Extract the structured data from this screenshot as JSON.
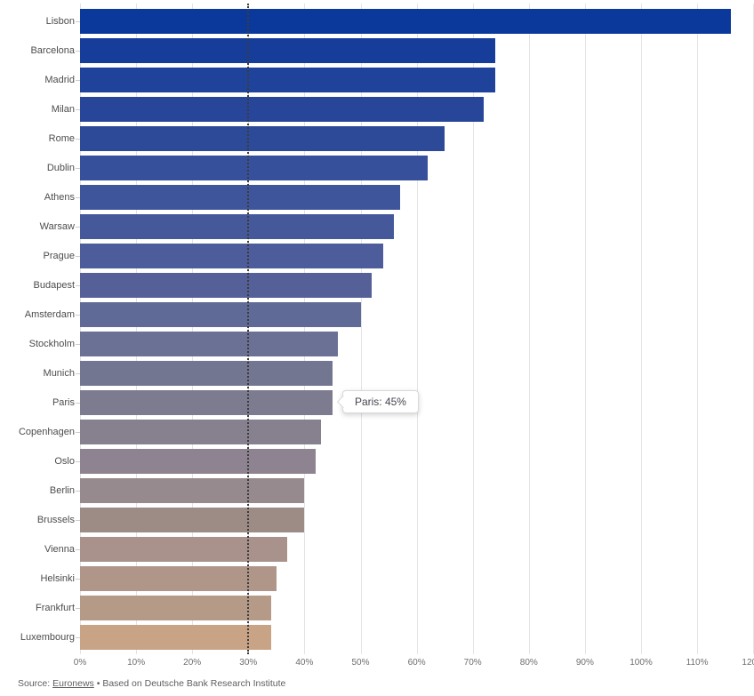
{
  "chart_data": {
    "type": "bar",
    "orientation": "horizontal",
    "title": "",
    "categories": [
      "Lisbon",
      "Barcelona",
      "Madrid",
      "Milan",
      "Rome",
      "Dublin",
      "Athens",
      "Warsaw",
      "Prague",
      "Budapest",
      "Amsterdam",
      "Stockholm",
      "Munich",
      "Paris",
      "Copenhagen",
      "Oslo",
      "Berlin",
      "Brussels",
      "Vienna",
      "Helsinki",
      "Frankfurt",
      "Luxembourg"
    ],
    "values": [
      116,
      74,
      74,
      72,
      65,
      62,
      57,
      56,
      54,
      52,
      50,
      46,
      45,
      45,
      43,
      42,
      40,
      40,
      37,
      35,
      34,
      34
    ],
    "value_suffix": "%",
    "bar_colors": [
      "#0b389b",
      "#173d9b",
      "#1f429b",
      "#27469a",
      "#2d4a99",
      "#36509b",
      "#3e549b",
      "#45589a",
      "#4d5c9a",
      "#556098",
      "#5f6a97",
      "#6a7195",
      "#737691",
      "#7d7b90",
      "#87818f",
      "#8e8390",
      "#968a8e",
      "#9d8b85",
      "#a8928b",
      "#b09689",
      "#b59a87",
      "#c8a386"
    ],
    "xlabel": "",
    "ylabel": "",
    "xlim": [
      0,
      120
    ],
    "x_tick_values": [
      0,
      10,
      20,
      30,
      40,
      50,
      60,
      70,
      80,
      90,
      100,
      110,
      120
    ],
    "x_tick_labels": [
      "0%",
      "10%",
      "20%",
      "30%",
      "40%",
      "50%",
      "60%",
      "70%",
      "80%",
      "90%",
      "100%",
      "110%",
      "120%"
    ],
    "grid": true,
    "legend": false,
    "reference_line": {
      "value": 30,
      "style": "dotted",
      "color": "#3c3c3c"
    }
  },
  "tooltip": {
    "text": "Paris: 45%",
    "target_city": "Paris",
    "target_value": 45
  },
  "footer": {
    "prefix": "Source: ",
    "link_text": "Euronews",
    "suffix": " • Based on Deutsche Bank Research Institute"
  }
}
